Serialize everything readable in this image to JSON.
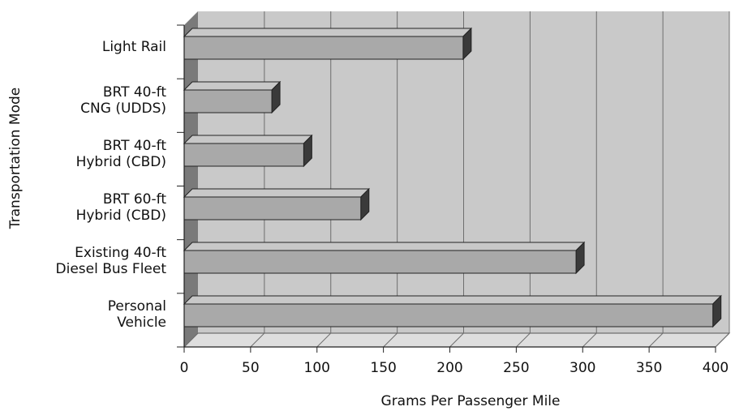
{
  "chart_data": {
    "type": "bar",
    "orientation": "horizontal",
    "style": "3d",
    "xlabel": "Grams Per Passenger Mile",
    "ylabel": "Transportation Mode",
    "xlim": [
      0,
      400
    ],
    "xticks": [
      "0",
      "50",
      "100",
      "150",
      "200",
      "250",
      "300",
      "350",
      "400"
    ],
    "grid": true,
    "categories": [
      [
        "Light Rail"
      ],
      [
        "BRT 40-ft",
        "CNG (UDDS)"
      ],
      [
        "BRT 40-ft",
        "Hybrid (CBD)"
      ],
      [
        "BRT 60-ft",
        "Hybrid (CBD)"
      ],
      [
        "Existing 40-ft",
        "Diesel Bus Fleet"
      ],
      [
        "Personal",
        "Vehicle"
      ]
    ],
    "values": [
      210,
      66,
      90,
      133,
      295,
      398
    ],
    "colors": {
      "bar_front": "#a9a9a9",
      "bar_top": "#c8c8c8",
      "bar_side": "#3a3a3a",
      "wall": "#c9c9c9",
      "left_wall": "#7a7a7a",
      "floor": "#dedede",
      "grid": "#6e6e6e"
    }
  }
}
